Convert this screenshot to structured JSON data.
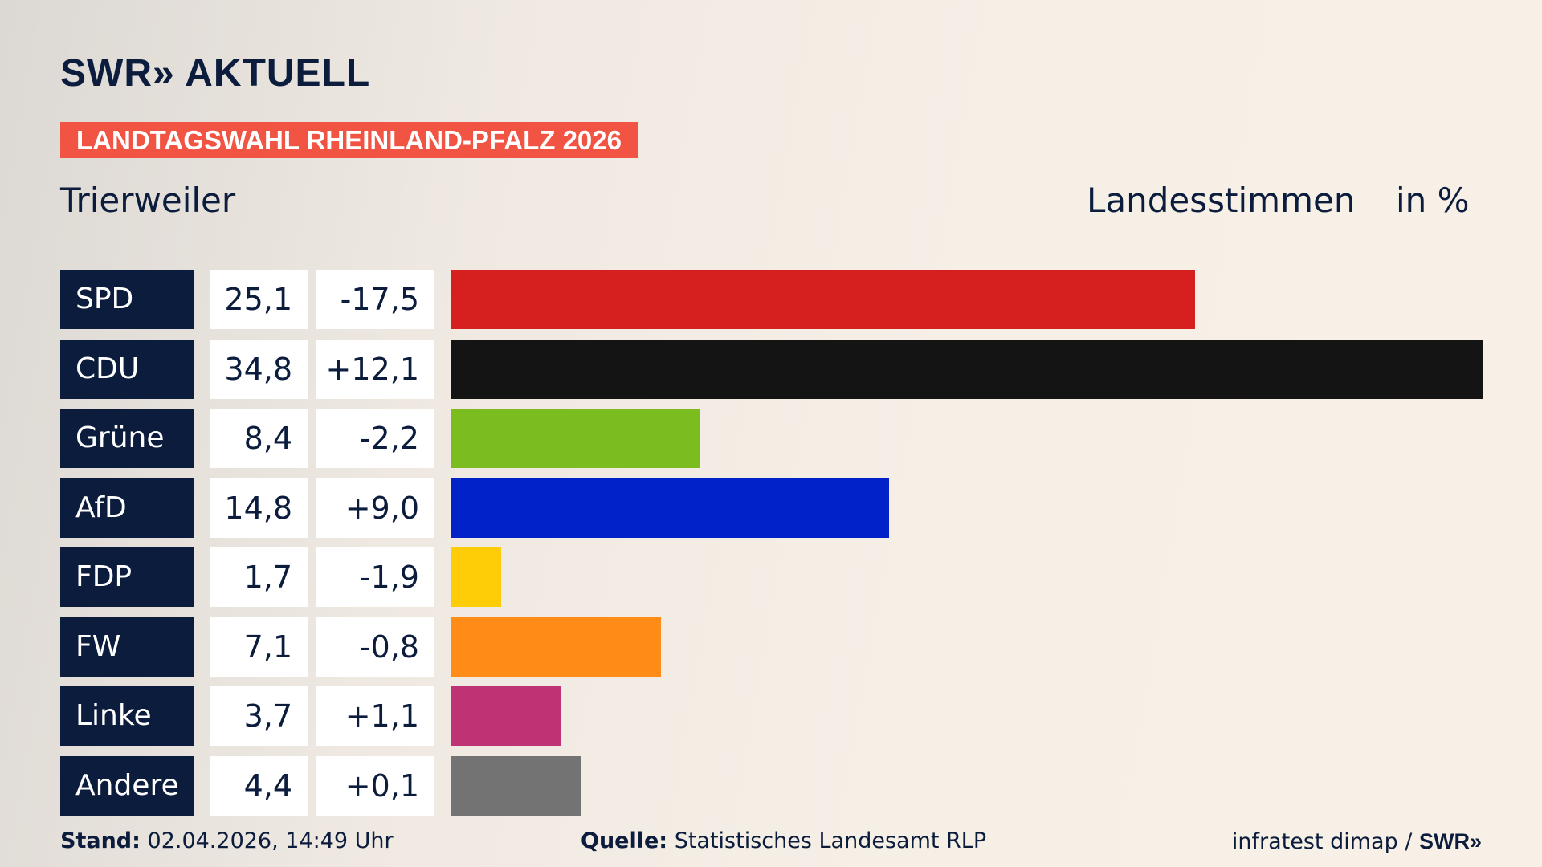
{
  "brand": {
    "logo_text": "SWR» AKTUELL"
  },
  "kicker": "LANDTAGSWAHL RHEINLAND-PFALZ 2026",
  "region": "Trierweiler",
  "measure_label": "Landesstimmen",
  "unit_label": "in %",
  "colors": {
    "navy": "#0b1c3d",
    "kicker_red": "#f25443"
  },
  "chart_data": {
    "type": "bar",
    "orientation": "horizontal",
    "title": "Trierweiler",
    "categories": [
      "SPD",
      "CDU",
      "Grüne",
      "AfD",
      "FDP",
      "FW",
      "Linke",
      "Andere"
    ],
    "values": [
      25.1,
      34.8,
      8.4,
      14.8,
      1.7,
      7.1,
      3.7,
      4.4
    ],
    "value_labels": [
      "25,1",
      "34,8",
      "8,4",
      "14,8",
      "1,7",
      "7,1",
      "3,7",
      "4,4"
    ],
    "diff_labels": [
      "-17,5",
      "+12,1",
      "-2,2",
      "+9,0",
      "-1,9",
      "-0,8",
      "+1,1",
      "+0,1"
    ],
    "diffs": [
      -17.5,
      12.1,
      -2.2,
      9.0,
      -1.9,
      -0.8,
      1.1,
      0.1
    ],
    "bar_colors": [
      "#d61f1f",
      "#141414",
      "#7bbd1e",
      "#0022c8",
      "#ffcc08",
      "#ff8c17",
      "#bf3274",
      "#737373"
    ],
    "xlim": [
      0,
      34.8
    ],
    "grid": false,
    "legend": "none"
  },
  "footer": {
    "stand_label": "Stand:",
    "stand_value": "02.04.2026, 14:49 Uhr",
    "source_label": "Quelle:",
    "source_value": "Statistisches Landesamt RLP",
    "credit": "infratest dimap / ",
    "credit_brand": "SWR»"
  }
}
